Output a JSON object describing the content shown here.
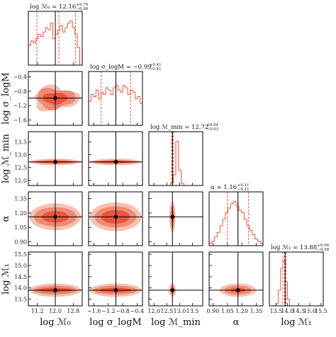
{
  "chart_data": {
    "type": "corner",
    "colors": {
      "outer": "#f6c1b3",
      "middle": "#f08a72",
      "inner": "#e8553c",
      "hist": "#e8553c",
      "truth": "#000000"
    },
    "parameters": [
      {
        "key": "logM0",
        "label": "log ℳ₀",
        "range": [
          10.8,
          13.2
        ],
        "ticks": [
          11.2,
          12.0,
          12.8
        ],
        "tick_labels": [
          "11.2",
          "12.0",
          "12.8"
        ],
        "best": 12.0,
        "median": 12.16,
        "minus": 0.98,
        "plus": 0.74,
        "title": "log ℳ₀ = 12.16",
        "title_sup": "+0.74",
        "title_sub": "−0.98"
      },
      {
        "key": "logSigma",
        "label": "log σ_logM",
        "range": [
          -1.75,
          -0.25
        ],
        "ticks": [
          -1.6,
          -1.2,
          -0.8,
          -0.4
        ],
        "tick_labels": [
          "−1.6",
          "−1.2",
          "−0.8",
          "−0.4"
        ],
        "best": -0.99,
        "median": -0.99,
        "minus": 0.41,
        "plus": 0.41,
        "title": "log σ_logM = −0.99",
        "title_sup": "+0.41",
        "title_sub": "−0.41"
      },
      {
        "key": "logMmin",
        "label": "log ℳ_min",
        "range": [
          11.8,
          13.9
        ],
        "ticks": [
          12.0,
          12.5,
          13.0,
          13.5
        ],
        "tick_labels": [
          "12.0",
          "12.5",
          "13.0",
          "13.5"
        ],
        "best": 12.72,
        "median": 12.72,
        "minus": 0.03,
        "plus": 0.04,
        "title": "log ℳ_min = 12.72",
        "title_sup": "+0.04",
        "title_sub": "−0.03"
      },
      {
        "key": "alpha",
        "label": "α",
        "range": [
          0.86,
          1.42
        ],
        "ticks": [
          0.9,
          1.05,
          1.2,
          1.35
        ],
        "tick_labels": [
          "0.90",
          "1.05",
          "1.20",
          "1.35"
        ],
        "best": 1.16,
        "median": 1.16,
        "minus": 0.11,
        "plus": 0.11,
        "title": "α = 1.16",
        "title_sup": "+0.11",
        "title_sub": "−0.11"
      },
      {
        "key": "logM1",
        "label": "log ℳ₁",
        "range": [
          13.2,
          15.6
        ],
        "ticks": [
          13.5,
          14.0,
          14.5,
          15.0,
          15.5
        ],
        "tick_labels": [
          "13.5",
          "14.0",
          "14.5",
          "15.0",
          "15.5"
        ],
        "best": 13.9,
        "median": 13.88,
        "minus": 0.08,
        "plus": 0.06,
        "title": "log ℳ₁ = 13.88",
        "title_sup": "+0.06",
        "title_sub": "−0.08"
      }
    ],
    "histograms": {
      "logM0": [
        0.45,
        0.55,
        0.5,
        0.6,
        0.7,
        0.65,
        0.75,
        0.85,
        0.8,
        0.95,
        0.6,
        0.7,
        0.8,
        0.9,
        0.75,
        0.85,
        0.95,
        1.0,
        0.85,
        0.7,
        0.4,
        0.0
      ],
      "logSigma": [
        0.55,
        0.7,
        0.65,
        0.8,
        0.6,
        0.75,
        0.7,
        0.85,
        0.8,
        0.7,
        0.85,
        0.9,
        0.8,
        0.75,
        0.9,
        0.85,
        0.7,
        0.8,
        0.75,
        0.6,
        0.65,
        0.5
      ],
      "logMmin": [
        0.0,
        0.0,
        0.0,
        0.0,
        0.0,
        0.0,
        0.0,
        0.0,
        0.05,
        0.25,
        1.0,
        0.35,
        0.05,
        0.0,
        0.0,
        0.0,
        0.0,
        0.0,
        0.0,
        0.0
      ],
      "alpha": [
        0.05,
        0.1,
        0.2,
        0.3,
        0.45,
        0.6,
        0.75,
        0.85,
        0.95,
        1.0,
        0.9,
        0.8,
        0.75,
        0.6,
        0.45,
        0.35,
        0.25,
        0.15,
        0.1,
        0.05
      ],
      "logM1": [
        0.0,
        0.0,
        0.0,
        0.05,
        0.35,
        0.85,
        1.0,
        0.55,
        0.15,
        0.0,
        0.0,
        0.0,
        0.0,
        0.0,
        0.0,
        0.0,
        0.0,
        0.0,
        0.0,
        0.0,
        0.0,
        0.0,
        0.0,
        0.0
      ]
    },
    "pair_contours": [
      {
        "row": 1,
        "col": 0,
        "center": [
          12.0,
          -1.0
        ],
        "widths": [
          1.1,
          0.45
        ],
        "levels": [
          [
            1.0,
            0.32,
            0.18
          ],
          [
            0.85,
            0.28,
            0.14
          ],
          [
            0.55,
            0.16,
            0.08
          ]
        ]
      },
      {
        "row": 2,
        "col": 0,
        "center": [
          12.0,
          12.72
        ],
        "widths": [
          1.1,
          0.04
        ],
        "levels": [
          [
            1.15,
            0.13
          ],
          [
            0.95,
            0.08
          ],
          [
            0.75,
            0.04
          ]
        ]
      },
      {
        "row": 2,
        "col": 1,
        "center": [
          -1.0,
          12.72
        ],
        "widths": [
          0.7,
          0.04
        ],
        "levels": [
          [
            0.72,
            0.13
          ],
          [
            0.6,
            0.08
          ],
          [
            0.45,
            0.04
          ]
        ]
      },
      {
        "row": 3,
        "col": 0,
        "center": [
          12.0,
          1.16
        ],
        "widths": [
          1.1,
          0.11
        ],
        "levels": [
          [
            1.15,
            0.14
          ],
          [
            0.95,
            0.1
          ],
          [
            0.6,
            0.06
          ]
        ]
      },
      {
        "row": 3,
        "col": 1,
        "center": [
          -1.0,
          1.16
        ],
        "widths": [
          0.7,
          0.11
        ],
        "levels": [
          [
            0.72,
            0.15
          ],
          [
            0.58,
            0.11
          ],
          [
            0.4,
            0.07
          ]
        ]
      },
      {
        "row": 3,
        "col": 2,
        "center": [
          12.72,
          1.16
        ],
        "widths": [
          0.1,
          0.11
        ],
        "levels": [
          [
            0.12,
            0.16
          ],
          [
            0.08,
            0.12
          ],
          [
            0.045,
            0.07
          ]
        ]
      },
      {
        "row": 4,
        "col": 0,
        "center": [
          12.0,
          13.9
        ],
        "widths": [
          1.1,
          0.08
        ],
        "levels": [
          [
            1.15,
            0.3
          ],
          [
            0.95,
            0.2
          ],
          [
            0.75,
            0.1
          ]
        ]
      },
      {
        "row": 4,
        "col": 1,
        "center": [
          -1.0,
          13.9
        ],
        "widths": [
          0.7,
          0.08
        ],
        "levels": [
          [
            0.72,
            0.3
          ],
          [
            0.6,
            0.2
          ],
          [
            0.45,
            0.1
          ]
        ]
      },
      {
        "row": 4,
        "col": 2,
        "center": [
          12.72,
          13.9
        ],
        "widths": [
          0.1,
          0.08
        ],
        "levels": [
          [
            0.14,
            0.3
          ],
          [
            0.09,
            0.19
          ],
          [
            0.05,
            0.1
          ]
        ]
      },
      {
        "row": 4,
        "col": 3,
        "center": [
          1.16,
          13.9
        ],
        "widths": [
          0.11,
          0.08
        ],
        "levels": [
          [
            0.19,
            0.3
          ],
          [
            0.14,
            0.2
          ],
          [
            0.08,
            0.1
          ]
        ]
      }
    ]
  }
}
